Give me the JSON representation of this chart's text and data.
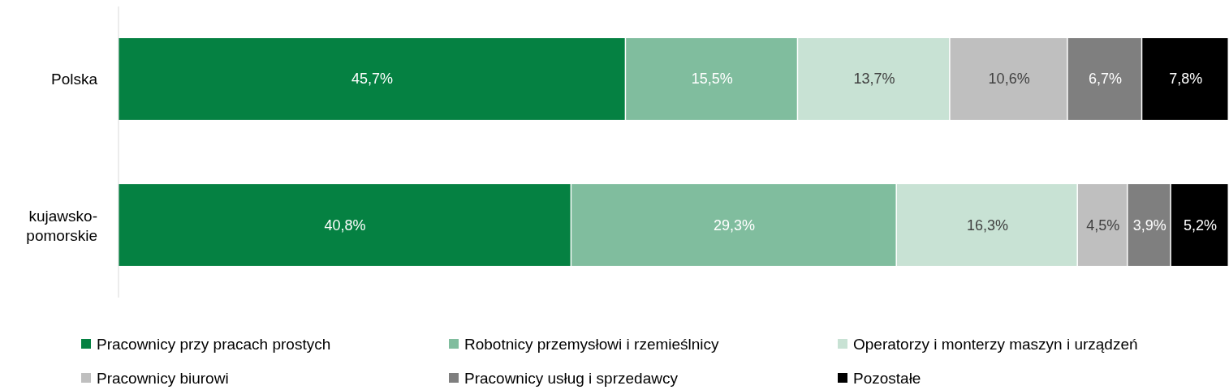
{
  "chart_data": {
    "type": "bar",
    "orientation": "horizontal",
    "stacked": true,
    "categories": [
      "Polska",
      "kujawsko-pomorskie"
    ],
    "xlim": [
      0,
      100
    ],
    "tick_labels": "y",
    "legend": "bottom",
    "series": [
      {
        "name": "Pracownicy przy pracach prostych",
        "color": "#058142",
        "values": [
          45.7,
          40.8
        ],
        "value_labels": [
          "45,7%",
          "40,8%"
        ]
      },
      {
        "name": "Robotnicy przemysłowi i rzemieślnicy",
        "color": "#80bd9e",
        "values": [
          15.5,
          29.3
        ],
        "value_labels": [
          "15,5%",
          "29,3%"
        ]
      },
      {
        "name": "Operatorzy i monterzy maszyn i urządzeń",
        "color": "#c8e2d4",
        "values": [
          13.7,
          16.3
        ],
        "value_labels": [
          "13,7%",
          "16,3%"
        ]
      },
      {
        "name": "Pracownicy biurowi",
        "color": "#bfbfbf",
        "values": [
          10.6,
          4.5
        ],
        "value_labels": [
          "10,6%",
          "4,5%"
        ]
      },
      {
        "name": "Pracownicy usług i sprzedawcy",
        "color": "#7f7f7f",
        "values": [
          6.7,
          3.9
        ],
        "value_labels": [
          "6,7%",
          "3,9%"
        ]
      },
      {
        "name": "Pozostałe",
        "color": "#000000",
        "values": [
          7.8,
          5.2
        ],
        "value_labels": [
          "7,8%",
          "5,2%"
        ]
      }
    ]
  }
}
